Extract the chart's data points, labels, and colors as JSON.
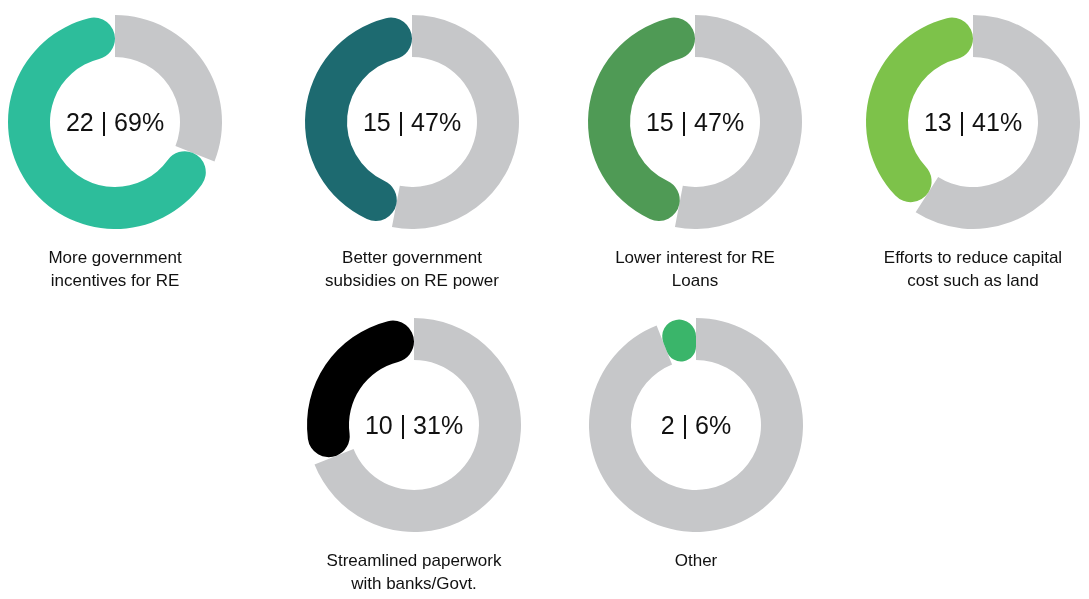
{
  "chart_data": [
    {
      "type": "donut",
      "title": "More government incentives for RE",
      "categories": [
        null,
        null
      ],
      "values": [
        69,
        31
      ],
      "colors": [
        "#2dbd9b",
        "#c6c7c9"
      ],
      "annotations": [
        "22 | 69%"
      ]
    },
    {
      "type": "donut",
      "title": "Better government subsidies on RE power",
      "categories": [
        null,
        null
      ],
      "values": [
        47,
        53
      ],
      "colors": [
        "#1d6a70",
        "#c6c7c9"
      ],
      "annotations": [
        "15 | 47%"
      ]
    },
    {
      "type": "donut",
      "title": "Lower interest for RE Loans",
      "categories": [
        null,
        null
      ],
      "values": [
        47,
        53
      ],
      "colors": [
        "#4f9a55",
        "#c6c7c9"
      ],
      "annotations": [
        "15 | 47%"
      ]
    },
    {
      "type": "donut",
      "title": "Efforts to reduce capital cost such as land",
      "categories": [
        null,
        null
      ],
      "values": [
        41,
        59
      ],
      "colors": [
        "#7dc24a",
        "#c6c7c9"
      ],
      "annotations": [
        "13 | 41%"
      ]
    },
    {
      "type": "donut",
      "title": "Streamlined paperwork with banks/Govt.",
      "categories": [
        null,
        null
      ],
      "values": [
        31,
        69
      ],
      "colors": [
        "#000000",
        "#c6c7c9"
      ],
      "annotations": [
        "10 | 31%"
      ]
    },
    {
      "type": "donut",
      "title": "Other",
      "categories": [
        null,
        null
      ],
      "values": [
        6,
        94
      ],
      "colors": [
        "#3ab56a",
        "#c6c7c9"
      ],
      "annotations": [
        "2 | 6%"
      ]
    }
  ]
}
